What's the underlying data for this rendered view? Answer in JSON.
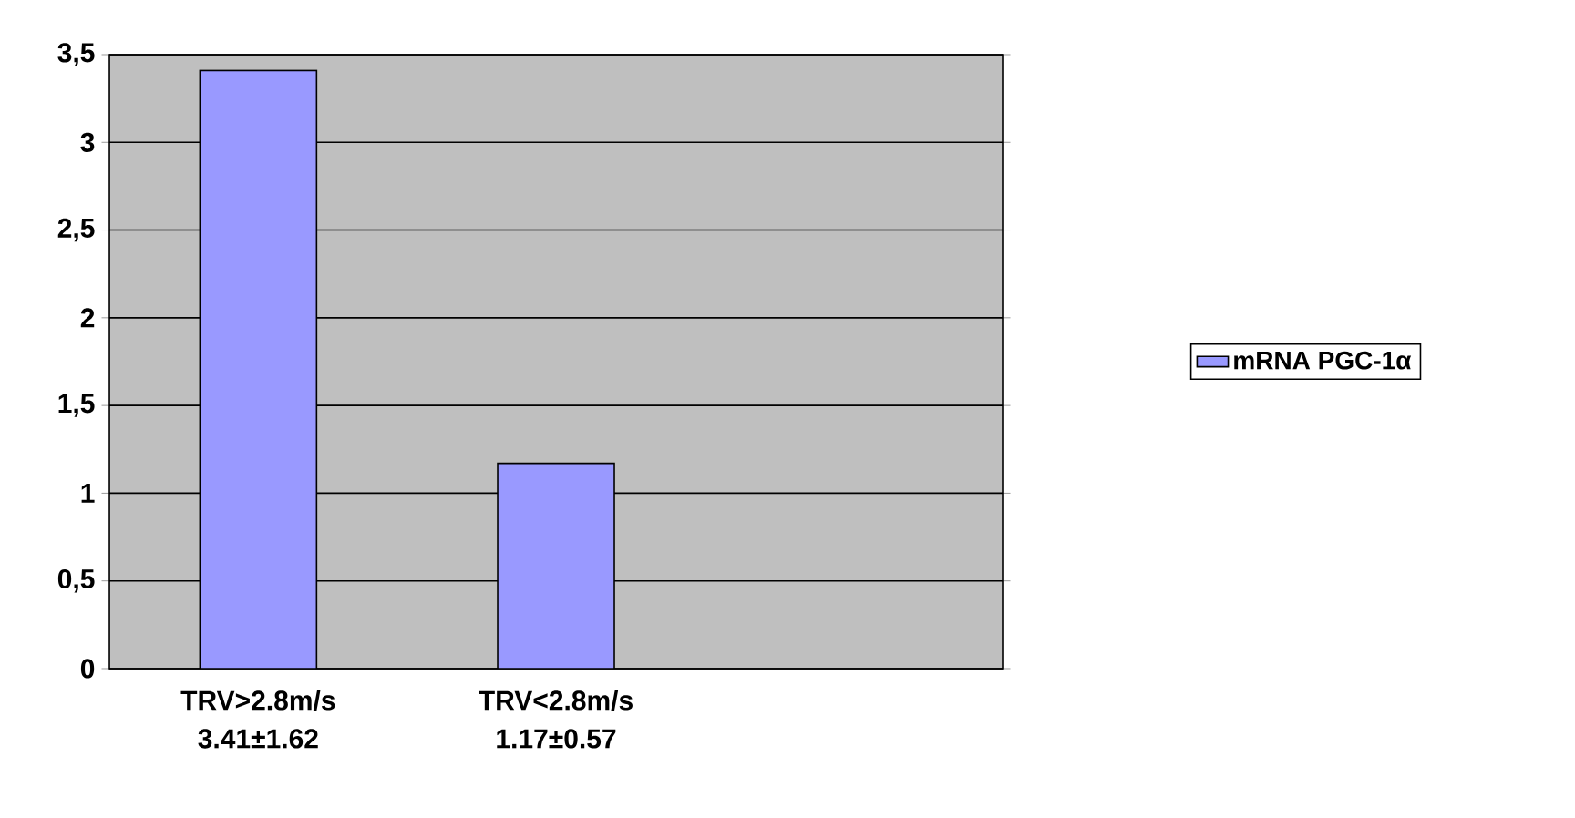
{
  "chart_data": {
    "type": "bar",
    "categories": [
      "TRV>2.8m/s",
      "TRV<2.8m/s",
      null
    ],
    "series": [
      {
        "name": "mRNA PGC-1α",
        "color": "#9999ff",
        "values": [
          3.41,
          1.17,
          null
        ],
        "value_labels": [
          "3.41±1.62",
          "1.17±0.57",
          null
        ]
      }
    ],
    "ylim": [
      0,
      3.5
    ],
    "yticks": [
      0,
      {
        "value": 0.5,
        "label": "0,5"
      },
      1,
      {
        "value": 1.5,
        "label": "1,5"
      },
      2,
      {
        "value": 2.5,
        "label": "2,5"
      },
      3,
      {
        "value": 3.5,
        "label": "3,5"
      }
    ],
    "grid": "y",
    "legend": "right"
  }
}
